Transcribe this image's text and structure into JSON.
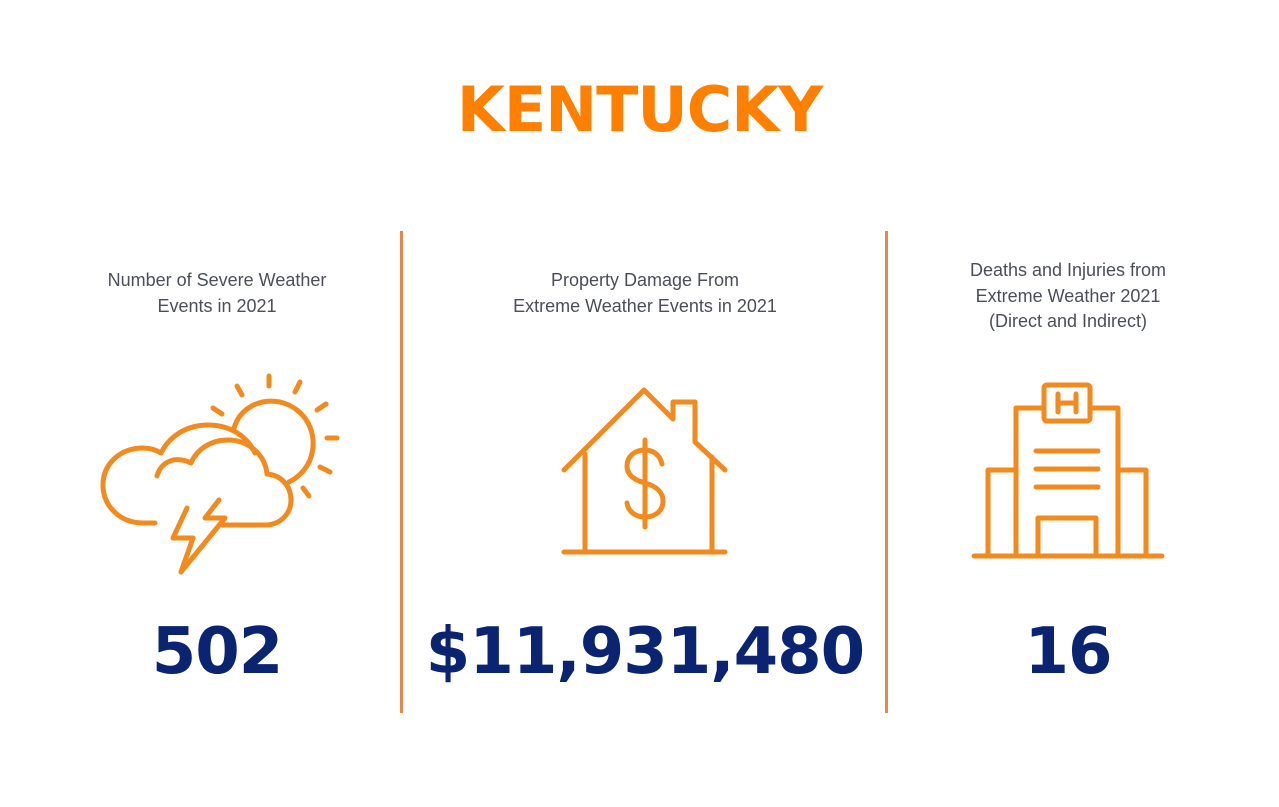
{
  "title": "KENTUCKY",
  "colors": {
    "title": "#ff8000",
    "icon_stroke": "#f28a1e",
    "divider": "#e0894a",
    "value": "#0a2472",
    "label": "#4b4f57"
  },
  "stats": [
    {
      "label_lines": [
        "Number of Severe Weather",
        "Events in 2021"
      ],
      "value": "502",
      "icon": "storm-cloud-sun-icon"
    },
    {
      "label_lines": [
        "Property Damage From",
        "Extreme Weather Events in 2021"
      ],
      "value": "$11,931,480",
      "icon": "house-dollar-icon"
    },
    {
      "label_lines": [
        "Deaths and Injuries from",
        "Extreme Weather 2021",
        "(Direct and Indirect)"
      ],
      "value": "16",
      "icon": "hospital-icon"
    }
  ]
}
